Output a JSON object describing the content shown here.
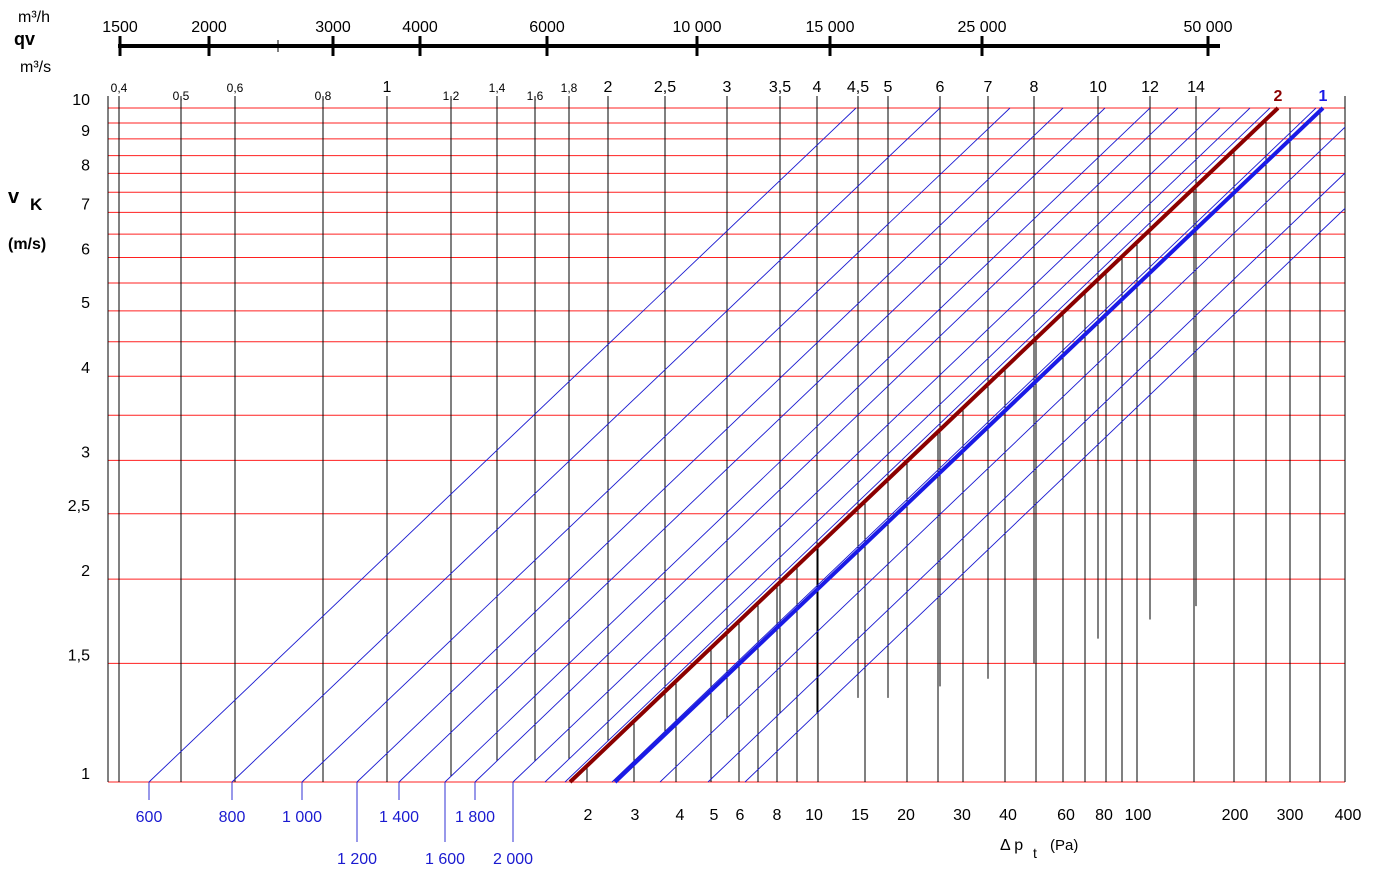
{
  "chart_data": {
    "type": "line",
    "title": "",
    "qv_scale": {
      "label_top": "m³/h",
      "label_main": "qv",
      "label_bottom": "m³/s",
      "ticks_m3h": [
        {
          "value": 1500,
          "label": "1500"
        },
        {
          "value": 2000,
          "label": "2000"
        },
        {
          "value": 2500,
          "label": ""
        },
        {
          "value": 3000,
          "label": "3000"
        },
        {
          "value": 4000,
          "label": "4000"
        },
        {
          "value": 6000,
          "label": "6000"
        },
        {
          "value": 10000,
          "label": "10 000"
        },
        {
          "value": 15000,
          "label": "15 000"
        },
        {
          "value": 25000,
          "label": "25 000"
        },
        {
          "value": 50000,
          "label": "50 000"
        }
      ]
    },
    "y_axis": {
      "label_main": "v",
      "label_sub": "K",
      "unit": "(m/s)",
      "scale": "log",
      "range": [
        1,
        10
      ],
      "ticks": [
        {
          "value": 1,
          "label": "1"
        },
        {
          "value": 1.5,
          "label": "1,5"
        },
        {
          "value": 2,
          "label": "2"
        },
        {
          "value": 2.5,
          "label": "2,5"
        },
        {
          "value": 3,
          "label": "3"
        },
        {
          "value": 4,
          "label": "4"
        },
        {
          "value": 5,
          "label": "5"
        },
        {
          "value": 6,
          "label": "6"
        },
        {
          "value": 7,
          "label": "7"
        },
        {
          "value": 8,
          "label": "8"
        },
        {
          "value": 9,
          "label": "9"
        },
        {
          "value": 10,
          "label": "10"
        }
      ],
      "minor_gridlines": [
        3.5,
        4.5,
        5.5,
        6.5,
        7.5,
        8.5,
        9.5
      ]
    },
    "diameter_lines": {
      "color": "#1a1ad0",
      "items": [
        {
          "label": "600",
          "bottom_row": 1,
          "qv_label": "0,4",
          "qv_size": "small"
        },
        {
          "label": "800",
          "bottom_row": 1,
          "qv_label": "0,5",
          "qv_size": "small"
        },
        {
          "label": "1 000",
          "bottom_row": 1,
          "qv_label": "0,6",
          "qv_size": "small"
        },
        {
          "label": "1 200",
          "bottom_row": 2,
          "qv_label": "0,8",
          "qv_size": "small"
        },
        {
          "label": "1 400",
          "bottom_row": 1,
          "qv_label": "1",
          "qv_size": "large"
        },
        {
          "label": "1 600",
          "bottom_row": 2,
          "qv_label": "1,2",
          "qv_size": "small"
        },
        {
          "label": "1 800",
          "bottom_row": 1,
          "qv_label": "1,4",
          "qv_size": "small"
        },
        {
          "label": "2 000",
          "bottom_row": 2,
          "qv_label": "1,6",
          "qv_size": "small"
        },
        {
          "label": "",
          "qv_label": "1,8",
          "qv_size": "small"
        },
        {
          "label": "",
          "qv_label": "2",
          "qv_size": "large"
        },
        {
          "label": "",
          "qv_label": "2,5",
          "qv_size": "large"
        },
        {
          "label": "",
          "qv_label": "3",
          "qv_size": "large"
        },
        {
          "label": "",
          "qv_label": "3,5",
          "qv_size": "large"
        },
        {
          "label": "",
          "qv_label": "4",
          "qv_size": "large"
        },
        {
          "label": "",
          "qv_label": "4,5",
          "qv_size": "large"
        },
        {
          "label": "",
          "qv_label": "5",
          "qv_size": "large"
        },
        {
          "label": "",
          "qv_label": "6",
          "qv_size": "large"
        },
        {
          "label": "",
          "qv_label": "7",
          "qv_size": "large"
        },
        {
          "label": "",
          "qv_label": "8",
          "qv_size": "large"
        },
        {
          "label": "",
          "qv_label": "10",
          "qv_size": "large"
        },
        {
          "label": "",
          "qv_label": "12",
          "qv_size": "large"
        },
        {
          "label": "",
          "qv_label": "14",
          "qv_size": "large"
        }
      ]
    },
    "pressure_axis": {
      "label": "Δ p",
      "label_sub": "t",
      "unit": "(Pa)",
      "scale": "log",
      "ticks": [
        "2",
        "3",
        "4",
        "5",
        "6",
        "8",
        "10",
        "15",
        "20",
        "30",
        "40",
        "60",
        "80",
        "100",
        "200",
        "300",
        "400"
      ],
      "intermediate_values": [
        7,
        9,
        25,
        50,
        70,
        90,
        150,
        250,
        350
      ]
    },
    "series": [
      {
        "name": "2",
        "color": "#8b0000",
        "dp_at_v1": 1.8,
        "dp_at_v10": 260
      },
      {
        "name": "1",
        "color": "#1a1ae6",
        "dp_at_v1": 2.6,
        "dp_at_v10": 360
      }
    ],
    "colors": {
      "grid_red": "#ff2020",
      "grid_black": "#000000",
      "diameter_blue": "#1a1ad0",
      "text": "#000000",
      "diameter_label": "#1a1ad0"
    }
  }
}
